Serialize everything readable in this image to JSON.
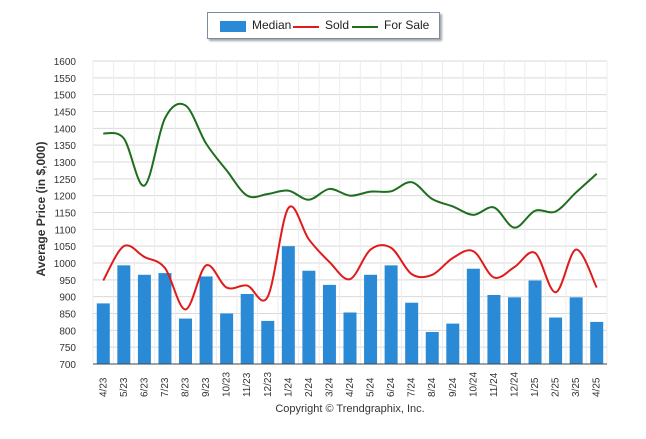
{
  "colors": {
    "median": "#2a8ad6",
    "sold": "#e01b1b",
    "for_sale": "#1e6e1e",
    "grid": "#d9d9d9",
    "axis": "#444444"
  },
  "legend": {
    "median": "Median",
    "sold": "Sold",
    "for_sale": "For Sale"
  },
  "copyright": "Copyright © Trendgraphix, Inc.",
  "chart_data": {
    "type": "bar",
    "ylabel": "Average Price (in $,000)",
    "ylim": [
      700,
      1600
    ],
    "yticks": [
      700,
      750,
      800,
      850,
      900,
      950,
      1000,
      1050,
      1100,
      1150,
      1200,
      1250,
      1300,
      1350,
      1400,
      1450,
      1500,
      1550,
      1600
    ],
    "grid": true,
    "legend_position": "top-center",
    "categories": [
      "4/23",
      "5/23",
      "6/23",
      "7/23",
      "8/23",
      "9/23",
      "10/23",
      "11/23",
      "12/23",
      "1/24",
      "2/24",
      "3/24",
      "4/24",
      "5/24",
      "6/24",
      "7/24",
      "8/24",
      "9/24",
      "10/24",
      "11/24",
      "12/24",
      "1/25",
      "2/25",
      "3/25",
      "4/25"
    ],
    "series": [
      {
        "name": "Median",
        "kind": "bar",
        "values": [
          880,
          993,
          965,
          970,
          835,
          960,
          850,
          908,
          828,
          1050,
          977,
          935,
          853,
          965,
          993,
          882,
          795,
          820,
          983,
          905,
          898,
          948,
          838,
          898,
          825
        ]
      },
      {
        "name": "Sold",
        "kind": "line",
        "values": [
          948,
          1050,
          1018,
          985,
          862,
          993,
          927,
          933,
          900,
          1163,
          1070,
          1003,
          952,
          1040,
          1045,
          967,
          965,
          1015,
          1035,
          957,
          988,
          1030,
          913,
          1040,
          927
        ]
      },
      {
        "name": "For Sale",
        "kind": "line",
        "values": [
          1385,
          1370,
          1230,
          1430,
          1468,
          1355,
          1275,
          1200,
          1205,
          1215,
          1188,
          1220,
          1200,
          1212,
          1213,
          1240,
          1190,
          1168,
          1143,
          1165,
          1105,
          1155,
          1153,
          1210,
          1265
        ]
      }
    ]
  }
}
